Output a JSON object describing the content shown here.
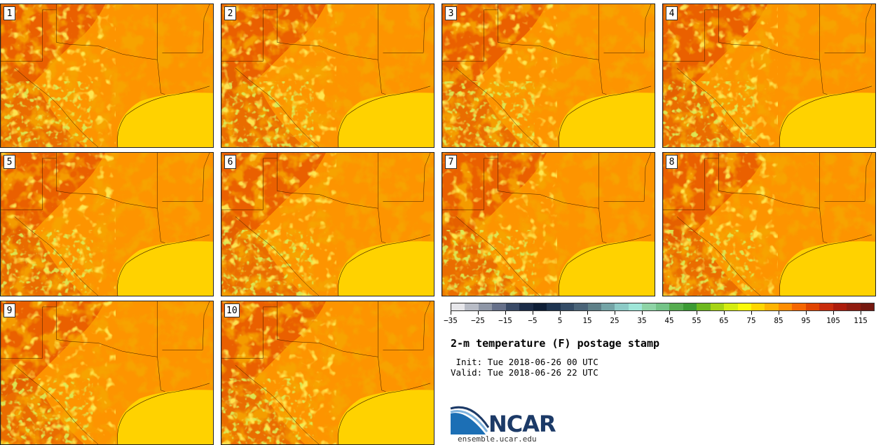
{
  "panels": [
    "1",
    "2",
    "3",
    "4",
    "5",
    "6",
    "7",
    "8",
    "9",
    "10"
  ],
  "colorbar": {
    "colors": [
      "#e6e6ea",
      "#b8bcc6",
      "#8e96a6",
      "#66708a",
      "#3a4a66",
      "#1c2c48",
      "#0e1e36",
      "#1e3450",
      "#344c66",
      "#4a6478",
      "#5e8088",
      "#74a4a6",
      "#8ccac6",
      "#9ee6d8",
      "#8ed4a6",
      "#74c488",
      "#56ac50",
      "#3c9a34",
      "#6eb81e",
      "#a6d414",
      "#d4ec10",
      "#fafa0a",
      "#ffd600",
      "#ffb400",
      "#ff8e00",
      "#f56600",
      "#e04400",
      "#c82c0c",
      "#ac1c0c",
      "#901c10",
      "#741810"
    ],
    "tick_labels": [
      "-35",
      "-25",
      "-15",
      "-5",
      "5",
      "15",
      "25",
      "35",
      "45",
      "55",
      "65",
      "75",
      "85",
      "95",
      "105",
      "115"
    ]
  },
  "title": "2-m temperature (F) postage stamp",
  "init": " Init: Tue 2018-06-26 00 UTC",
  "valid": "Valid: Tue 2018-06-26 22 UTC",
  "logo": {
    "text": "NCAR",
    "site": "ensemble.ucar.edu"
  }
}
